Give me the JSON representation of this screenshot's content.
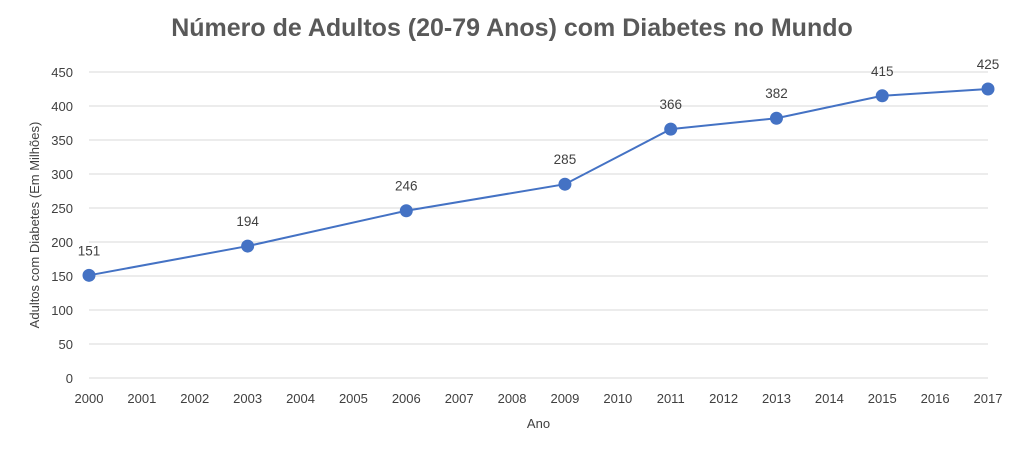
{
  "chart_data": {
    "type": "line",
    "title": "Número de Adultos (20-79 Anos) com Diabetes no Mundo",
    "xlabel": "Ano",
    "ylabel": "Adultos com Diabetes (Em Milhões)",
    "x_ticks": [
      "2000",
      "2001",
      "2002",
      "2003",
      "2004",
      "2005",
      "2006",
      "2007",
      "2008",
      "2009",
      "2010",
      "2011",
      "2012",
      "2013",
      "2014",
      "2015",
      "2016",
      "2017"
    ],
    "xlim": [
      2000,
      2017
    ],
    "ylim": [
      0,
      450
    ],
    "y_ticks": [
      0,
      50,
      100,
      150,
      200,
      250,
      300,
      350,
      400,
      450
    ],
    "grid": true,
    "legend": "none",
    "series": [
      {
        "x": [
          2000,
          2003,
          2006,
          2009,
          2011,
          2013,
          2015,
          2017
        ],
        "y": [
          151,
          194,
          246,
          285,
          366,
          382,
          415,
          425
        ],
        "labels": [
          "151",
          "194",
          "246",
          "285",
          "366",
          "382",
          "415",
          "425"
        ],
        "color": "#4472C4"
      }
    ],
    "colors": {
      "grid": "#D9D9D9",
      "text": "#404040",
      "title": "#595959"
    }
  }
}
